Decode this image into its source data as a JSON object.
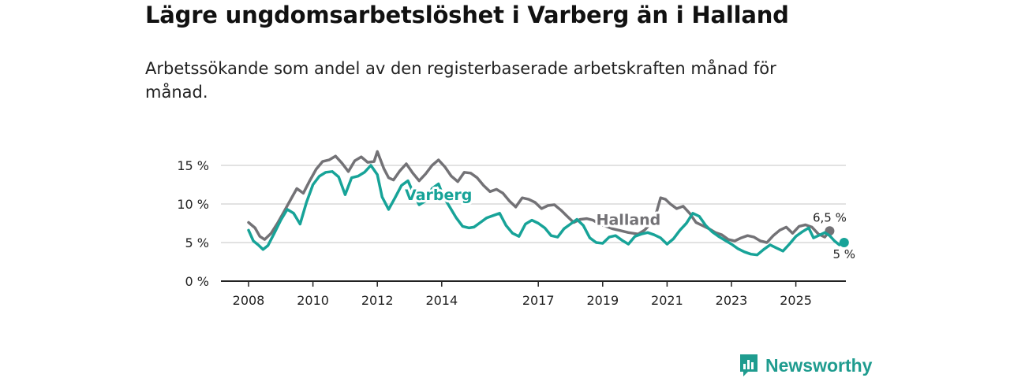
{
  "header": {
    "title": "Lägre ungdomsarbetslöshet i Varberg än i Halland",
    "subtitle": "Arbetssökande som andel av den registerbaserade arbetskraften månad för månad."
  },
  "brand": {
    "name": "Newsworthy",
    "icon": "bar-chart-speech-bubble-icon"
  },
  "colors": {
    "halland": "#737276",
    "varberg": "#17a398",
    "grid": "#d9d9d9",
    "axis": "#222222",
    "brand": "#1f9c8f"
  },
  "chart_data": {
    "type": "line",
    "title": "Lägre ungdomsarbetslöshet i Varberg än i Halland",
    "xlabel": "",
    "ylabel": "",
    "xlim": [
      2008,
      2026.5
    ],
    "ylim": [
      0,
      17
    ],
    "x_ticks": [
      2008,
      2010,
      2012,
      2014,
      2017,
      2019,
      2021,
      2023,
      2025
    ],
    "x_tick_labels": [
      "2008",
      "2010",
      "2012",
      "2014",
      "2017",
      "2019",
      "2021",
      "2023",
      "2025"
    ],
    "y_ticks": [
      0,
      5,
      10,
      15
    ],
    "y_tick_labels": [
      "0 %",
      "5 %",
      "10 %",
      "15 %"
    ],
    "series": [
      {
        "name": "Halland",
        "label_x": 2019.8,
        "label_y": 7.3,
        "end_label": "6,5 %",
        "end_value": 6.5,
        "points": [
          [
            2008,
            7.6
          ],
          [
            2008.2,
            6.9
          ],
          [
            2008.35,
            5.8
          ],
          [
            2008.5,
            5.4
          ],
          [
            2008.7,
            6.2
          ],
          [
            2008.9,
            7.5
          ],
          [
            2009.1,
            9.0
          ],
          [
            2009.3,
            10.5
          ],
          [
            2009.5,
            12.0
          ],
          [
            2009.7,
            11.4
          ],
          [
            2009.9,
            13.0
          ],
          [
            2010.1,
            14.5
          ],
          [
            2010.3,
            15.5
          ],
          [
            2010.5,
            15.7
          ],
          [
            2010.7,
            16.2
          ],
          [
            2010.9,
            15.3
          ],
          [
            2011.1,
            14.2
          ],
          [
            2011.3,
            15.6
          ],
          [
            2011.5,
            16.1
          ],
          [
            2011.7,
            15.4
          ],
          [
            2011.9,
            15.5
          ],
          [
            2012.0,
            16.8
          ],
          [
            2012.2,
            14.6
          ],
          [
            2012.35,
            13.4
          ],
          [
            2012.5,
            13.1
          ],
          [
            2012.7,
            14.3
          ],
          [
            2012.9,
            15.2
          ],
          [
            2013.1,
            14.0
          ],
          [
            2013.3,
            13.0
          ],
          [
            2013.5,
            13.9
          ],
          [
            2013.7,
            15.0
          ],
          [
            2013.9,
            15.7
          ],
          [
            2014.1,
            14.8
          ],
          [
            2014.3,
            13.6
          ],
          [
            2014.5,
            12.9
          ],
          [
            2014.7,
            14.1
          ],
          [
            2014.9,
            14.0
          ],
          [
            2015.1,
            13.4
          ],
          [
            2015.3,
            12.4
          ],
          [
            2015.5,
            11.6
          ],
          [
            2015.7,
            11.9
          ],
          [
            2015.9,
            11.4
          ],
          [
            2016.1,
            10.4
          ],
          [
            2016.3,
            9.6
          ],
          [
            2016.5,
            10.8
          ],
          [
            2016.7,
            10.6
          ],
          [
            2016.9,
            10.2
          ],
          [
            2017.1,
            9.4
          ],
          [
            2017.3,
            9.8
          ],
          [
            2017.5,
            9.9
          ],
          [
            2017.7,
            9.2
          ],
          [
            2017.9,
            8.4
          ],
          [
            2018.1,
            7.6
          ],
          [
            2018.3,
            8.0
          ],
          [
            2018.5,
            8.1
          ],
          [
            2018.7,
            7.9
          ],
          [
            2018.9,
            7.4
          ],
          [
            2019.1,
            7.1
          ],
          [
            2019.3,
            6.8
          ],
          [
            2019.5,
            6.6
          ],
          [
            2019.8,
            6.3
          ],
          [
            2020.1,
            6.1
          ],
          [
            2020.3,
            6.6
          ],
          [
            2020.5,
            7.5
          ],
          [
            2020.65,
            8.6
          ],
          [
            2020.8,
            10.8
          ],
          [
            2020.95,
            10.6
          ],
          [
            2021.1,
            10.0
          ],
          [
            2021.3,
            9.4
          ],
          [
            2021.5,
            9.7
          ],
          [
            2021.7,
            8.8
          ],
          [
            2021.9,
            7.6
          ],
          [
            2022.1,
            7.2
          ],
          [
            2022.3,
            6.8
          ],
          [
            2022.5,
            6.3
          ],
          [
            2022.7,
            6.0
          ],
          [
            2022.9,
            5.4
          ],
          [
            2023.1,
            5.2
          ],
          [
            2023.3,
            5.6
          ],
          [
            2023.5,
            5.9
          ],
          [
            2023.7,
            5.7
          ],
          [
            2023.9,
            5.2
          ],
          [
            2024.1,
            5.0
          ],
          [
            2024.3,
            5.9
          ],
          [
            2024.5,
            6.6
          ],
          [
            2024.7,
            7.0
          ],
          [
            2024.9,
            6.2
          ],
          [
            2025.1,
            7.1
          ],
          [
            2025.3,
            7.3
          ],
          [
            2025.5,
            7.0
          ],
          [
            2025.7,
            6.1
          ],
          [
            2025.9,
            5.7
          ],
          [
            2026.05,
            6.5
          ]
        ]
      },
      {
        "name": "Varberg",
        "label_x": 2013.9,
        "label_y": 10.5,
        "end_label": "5 %",
        "end_value": 5.0,
        "points": [
          [
            2008,
            6.6
          ],
          [
            2008.15,
            5.2
          ],
          [
            2008.3,
            4.7
          ],
          [
            2008.45,
            4.1
          ],
          [
            2008.6,
            4.6
          ],
          [
            2008.8,
            6.2
          ],
          [
            2009.0,
            7.9
          ],
          [
            2009.2,
            9.3
          ],
          [
            2009.4,
            8.8
          ],
          [
            2009.6,
            7.4
          ],
          [
            2009.8,
            10.2
          ],
          [
            2010.0,
            12.5
          ],
          [
            2010.2,
            13.6
          ],
          [
            2010.4,
            14.1
          ],
          [
            2010.6,
            14.2
          ],
          [
            2010.8,
            13.5
          ],
          [
            2011.0,
            11.2
          ],
          [
            2011.2,
            13.4
          ],
          [
            2011.4,
            13.6
          ],
          [
            2011.6,
            14.1
          ],
          [
            2011.8,
            15.0
          ],
          [
            2012.0,
            13.8
          ],
          [
            2012.15,
            10.9
          ],
          [
            2012.35,
            9.3
          ],
          [
            2012.55,
            10.8
          ],
          [
            2012.75,
            12.4
          ],
          [
            2012.95,
            13.0
          ],
          [
            2013.1,
            11.6
          ],
          [
            2013.3,
            9.9
          ],
          [
            2013.5,
            10.4
          ],
          [
            2013.7,
            12.0
          ],
          [
            2013.9,
            12.6
          ],
          [
            2014.05,
            11.0
          ],
          [
            2014.25,
            9.6
          ],
          [
            2014.45,
            8.2
          ],
          [
            2014.65,
            7.1
          ],
          [
            2014.85,
            6.9
          ],
          [
            2015.0,
            7.0
          ],
          [
            2015.2,
            7.6
          ],
          [
            2015.4,
            8.2
          ],
          [
            2015.6,
            8.5
          ],
          [
            2015.8,
            8.8
          ],
          [
            2016.0,
            7.2
          ],
          [
            2016.2,
            6.2
          ],
          [
            2016.4,
            5.8
          ],
          [
            2016.6,
            7.4
          ],
          [
            2016.8,
            7.9
          ],
          [
            2017.0,
            7.5
          ],
          [
            2017.2,
            6.9
          ],
          [
            2017.4,
            5.9
          ],
          [
            2017.6,
            5.7
          ],
          [
            2017.8,
            6.8
          ],
          [
            2018.0,
            7.4
          ],
          [
            2018.2,
            8.0
          ],
          [
            2018.4,
            7.2
          ],
          [
            2018.6,
            5.6
          ],
          [
            2018.8,
            5.0
          ],
          [
            2019.0,
            4.9
          ],
          [
            2019.2,
            5.7
          ],
          [
            2019.4,
            5.9
          ],
          [
            2019.6,
            5.3
          ],
          [
            2019.8,
            4.8
          ],
          [
            2020.0,
            5.8
          ],
          [
            2020.2,
            6.1
          ],
          [
            2020.4,
            6.3
          ],
          [
            2020.6,
            6.0
          ],
          [
            2020.8,
            5.6
          ],
          [
            2021.0,
            4.8
          ],
          [
            2021.2,
            5.5
          ],
          [
            2021.4,
            6.6
          ],
          [
            2021.6,
            7.5
          ],
          [
            2021.8,
            8.8
          ],
          [
            2022.0,
            8.4
          ],
          [
            2022.2,
            7.2
          ],
          [
            2022.4,
            6.4
          ],
          [
            2022.6,
            5.8
          ],
          [
            2022.8,
            5.3
          ],
          [
            2023.0,
            4.8
          ],
          [
            2023.2,
            4.2
          ],
          [
            2023.4,
            3.8
          ],
          [
            2023.6,
            3.5
          ],
          [
            2023.8,
            3.4
          ],
          [
            2024.0,
            4.1
          ],
          [
            2024.2,
            4.7
          ],
          [
            2024.4,
            4.3
          ],
          [
            2024.6,
            3.9
          ],
          [
            2024.8,
            4.8
          ],
          [
            2025.0,
            5.8
          ],
          [
            2025.2,
            6.4
          ],
          [
            2025.4,
            6.9
          ],
          [
            2025.55,
            5.6
          ],
          [
            2025.7,
            5.9
          ],
          [
            2025.9,
            6.3
          ],
          [
            2026.05,
            5.9
          ],
          [
            2026.2,
            5.2
          ],
          [
            2026.35,
            4.7
          ],
          [
            2026.5,
            5.0
          ]
        ]
      }
    ]
  }
}
